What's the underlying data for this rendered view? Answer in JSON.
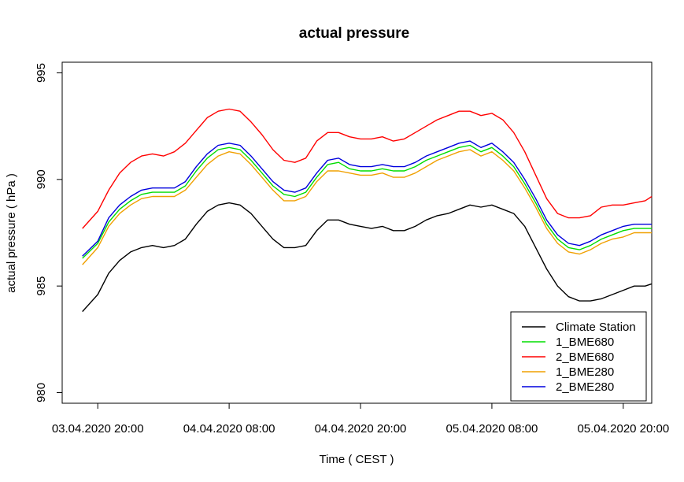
{
  "chart_data": {
    "type": "line",
    "title": "actual pressure",
    "xlabel": "Time ( CEST )",
    "ylabel": "actual pressure ( hPa )",
    "ylim": [
      979.5,
      995.5
    ],
    "yticks": [
      980,
      985,
      990,
      995
    ],
    "xlim": [
      -3.25,
      50.6
    ],
    "xticks": [
      {
        "h": 0,
        "label": "03.04.2020 20:00"
      },
      {
        "h": 12,
        "label": "04.04.2020 08:00"
      },
      {
        "h": 24,
        "label": "04.04.2020 20:00"
      },
      {
        "h": 36,
        "label": "05.04.2020 08:00"
      },
      {
        "h": 48,
        "label": "05.04.2020 20:00"
      }
    ],
    "x_hours": [
      -1.4,
      0,
      1,
      2,
      3,
      4,
      5,
      6,
      7,
      8,
      9,
      10,
      11,
      12,
      13,
      14,
      15,
      16,
      17,
      18,
      19,
      20,
      21,
      22,
      23,
      24,
      25,
      26,
      27,
      28,
      29,
      30,
      31,
      32,
      33,
      34,
      35,
      36,
      37,
      38,
      39,
      40,
      41,
      42,
      43,
      44,
      45,
      46,
      47,
      48,
      49,
      50,
      50.6
    ],
    "grid": false,
    "legend_position": "bottom-right",
    "series": [
      {
        "name": "Climate Station",
        "color": "#000000",
        "values": [
          983.8,
          984.6,
          985.6,
          986.2,
          986.6,
          986.8,
          986.9,
          986.8,
          986.9,
          987.2,
          987.9,
          988.5,
          988.8,
          988.9,
          988.8,
          988.4,
          987.8,
          987.2,
          986.8,
          986.8,
          986.9,
          987.6,
          988.1,
          988.1,
          987.9,
          987.8,
          987.7,
          987.8,
          987.6,
          987.6,
          987.8,
          988.1,
          988.3,
          988.4,
          988.6,
          988.8,
          988.7,
          988.8,
          988.6,
          988.4,
          987.8,
          986.8,
          985.8,
          985.0,
          984.5,
          984.3,
          984.3,
          984.4,
          984.6,
          984.8,
          985.0,
          985.0,
          985.1
        ]
      },
      {
        "name": "1_BME680",
        "color": "#00dd00",
        "values": [
          986.3,
          987.0,
          988.0,
          988.6,
          989.0,
          989.3,
          989.4,
          989.4,
          989.4,
          989.7,
          990.4,
          991.0,
          991.4,
          991.5,
          991.4,
          990.9,
          990.3,
          989.7,
          989.3,
          989.2,
          989.4,
          990.1,
          990.7,
          990.8,
          990.5,
          990.4,
          990.4,
          990.5,
          990.4,
          990.4,
          990.6,
          990.9,
          991.1,
          991.3,
          991.5,
          991.6,
          991.3,
          991.5,
          991.1,
          990.6,
          989.8,
          988.9,
          987.9,
          987.2,
          986.8,
          986.7,
          986.9,
          987.2,
          987.4,
          987.6,
          987.7,
          987.7,
          987.7
        ]
      },
      {
        "name": "2_BME680",
        "color": "#ff0000",
        "values": [
          987.7,
          988.5,
          989.5,
          990.3,
          990.8,
          991.1,
          991.2,
          991.1,
          991.3,
          991.7,
          992.3,
          992.9,
          993.2,
          993.3,
          993.2,
          992.7,
          992.1,
          991.4,
          990.9,
          990.8,
          991.0,
          991.8,
          992.2,
          992.2,
          992.0,
          991.9,
          991.9,
          992.0,
          991.8,
          991.9,
          992.2,
          992.5,
          992.8,
          993.0,
          993.2,
          993.2,
          993.0,
          993.1,
          992.8,
          992.2,
          991.3,
          990.2,
          989.1,
          988.4,
          988.2,
          988.2,
          988.3,
          988.7,
          988.8,
          988.8,
          988.9,
          989.0,
          989.2
        ]
      },
      {
        "name": "1_BME280",
        "color": "#f0a000",
        "values": [
          986.0,
          986.8,
          987.8,
          988.4,
          988.8,
          989.1,
          989.2,
          989.2,
          989.2,
          989.5,
          990.1,
          990.7,
          991.1,
          991.3,
          991.2,
          990.7,
          990.1,
          989.5,
          989.0,
          989.0,
          989.2,
          989.9,
          990.4,
          990.4,
          990.3,
          990.2,
          990.2,
          990.3,
          990.1,
          990.1,
          990.3,
          990.6,
          990.9,
          991.1,
          991.3,
          991.4,
          991.1,
          991.3,
          990.9,
          990.4,
          989.6,
          988.7,
          987.7,
          987.0,
          986.6,
          986.5,
          986.7,
          987.0,
          987.2,
          987.3,
          987.5,
          987.5,
          987.5
        ]
      },
      {
        "name": "2_BME280",
        "color": "#0000dd",
        "values": [
          986.4,
          987.1,
          988.2,
          988.8,
          989.2,
          989.5,
          989.6,
          989.6,
          989.6,
          989.9,
          990.6,
          991.2,
          991.6,
          991.7,
          991.6,
          991.1,
          990.5,
          989.9,
          989.5,
          989.4,
          989.6,
          990.3,
          990.9,
          991.0,
          990.7,
          990.6,
          990.6,
          990.7,
          990.6,
          990.6,
          990.8,
          991.1,
          991.3,
          991.5,
          991.7,
          991.8,
          991.5,
          991.7,
          991.3,
          990.8,
          990.0,
          989.1,
          988.1,
          987.4,
          987.0,
          986.9,
          987.1,
          987.4,
          987.6,
          987.8,
          987.9,
          987.9,
          987.9
        ]
      }
    ]
  }
}
